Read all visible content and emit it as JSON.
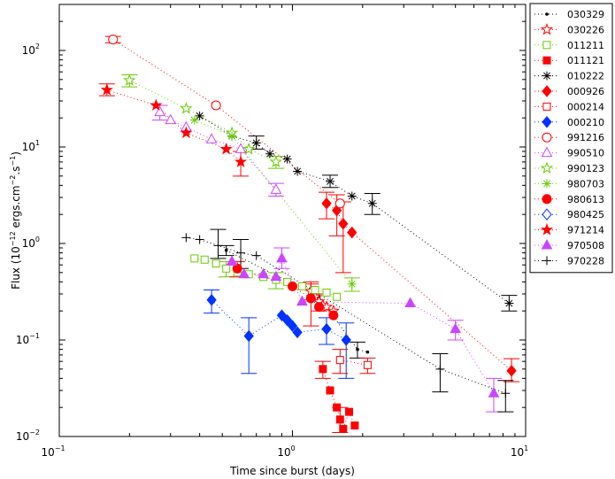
{
  "chart_data": {
    "type": "scatter",
    "title": "",
    "xlabel": "Time since burst (days)",
    "ylabel_prefix": "Flux (10",
    "ylabel_exp1": "−12",
    "ylabel_mid": " ergs.cm",
    "ylabel_exp2": "−2",
    "ylabel_mid2": ".s",
    "ylabel_exp3": "−1",
    "ylabel_suffix": ")",
    "xscale": "log",
    "yscale": "log",
    "xlim": [
      0.1,
      10
    ],
    "ylim": [
      0.01,
      300
    ],
    "x_ticks": [
      {
        "value": 0.1,
        "base": "10",
        "exp": "−1"
      },
      {
        "value": 1,
        "base": "10",
        "exp": "0"
      },
      {
        "value": 10,
        "base": "10",
        "exp": "1"
      }
    ],
    "y_ticks": [
      {
        "value": 0.01,
        "base": "10",
        "exp": "−2"
      },
      {
        "value": 0.1,
        "base": "10",
        "exp": "−1"
      },
      {
        "value": 1,
        "base": "10",
        "exp": "0"
      },
      {
        "value": 10,
        "base": "10",
        "exp": "1"
      },
      {
        "value": 100,
        "base": "10",
        "exp": "2"
      }
    ],
    "legend_position": "outside-right",
    "series": [
      {
        "name": "030329",
        "color": "#000000",
        "marker": "dot",
        "points": [
          [
            0.52,
            0.85
          ],
          [
            1.3,
            0.28
          ],
          [
            1.9,
            0.08
          ],
          [
            2.1,
            0.075
          ]
        ],
        "errors": [
          [
            0.52,
            0.75,
            0.95
          ],
          [
            1.9,
            0.065,
            0.095
          ]
        ]
      },
      {
        "name": "030226",
        "color": "#ff0000",
        "marker": "star-open",
        "points": [
          [
            1.2,
            0.32
          ],
          [
            1.25,
            0.28
          ],
          [
            1.3,
            0.25
          ],
          [
            1.35,
            0.23
          ],
          [
            1.4,
            0.22
          ],
          [
            1.5,
            0.2
          ]
        ],
        "errors": [
          [
            1.2,
            0.26,
            0.38
          ],
          [
            1.3,
            0.2,
            0.3
          ]
        ]
      },
      {
        "name": "011211",
        "color": "#66cc00",
        "marker": "square-open",
        "points": [
          [
            0.38,
            0.7
          ],
          [
            0.42,
            0.68
          ],
          [
            0.47,
            0.62
          ],
          [
            0.52,
            0.55
          ],
          [
            0.58,
            0.5
          ],
          [
            0.65,
            0.48
          ],
          [
            0.75,
            0.45
          ],
          [
            0.85,
            0.42
          ],
          [
            0.95,
            0.4
          ],
          [
            1.1,
            0.36
          ],
          [
            1.25,
            0.33
          ],
          [
            1.4,
            0.31
          ],
          [
            1.55,
            0.28
          ]
        ],
        "errors": [
          [
            0.52,
            0.45,
            0.65
          ],
          [
            0.85,
            0.34,
            0.5
          ]
        ]
      },
      {
        "name": "011121",
        "color": "#ff0000",
        "marker": "square",
        "points": [
          [
            1.35,
            0.05
          ],
          [
            1.45,
            0.03
          ],
          [
            1.55,
            0.02
          ],
          [
            1.6,
            0.015
          ],
          [
            1.65,
            0.012
          ],
          [
            1.75,
            0.018
          ],
          [
            1.85,
            0.013
          ]
        ],
        "errors": [
          [
            1.35,
            0.04,
            0.06
          ],
          [
            1.6,
            0.011,
            0.02
          ]
        ]
      },
      {
        "name": "010222",
        "color": "#000000",
        "marker": "asterisk",
        "points": [
          [
            0.4,
            21
          ],
          [
            0.55,
            13
          ],
          [
            0.7,
            11
          ],
          [
            0.8,
            8.5
          ],
          [
            0.95,
            7.5
          ],
          [
            1.05,
            5.6
          ],
          [
            1.45,
            4.4
          ],
          [
            1.8,
            3.1
          ],
          [
            2.2,
            2.6
          ],
          [
            8.5,
            0.24
          ]
        ],
        "errors": [
          [
            0.7,
            9.5,
            13
          ],
          [
            1.45,
            3.8,
            5.1
          ],
          [
            2.2,
            2.0,
            3.3
          ],
          [
            8.5,
            0.2,
            0.29
          ]
        ]
      },
      {
        "name": "000926",
        "color": "#ff0000",
        "marker": "diamond",
        "points": [
          [
            1.4,
            2.6
          ],
          [
            1.55,
            2.2
          ],
          [
            1.65,
            1.6
          ],
          [
            1.8,
            1.3
          ],
          [
            8.7,
            0.048
          ]
        ],
        "errors": [
          [
            1.4,
            1.8,
            3.4
          ],
          [
            1.55,
            1.2,
            3.2
          ],
          [
            1.65,
            0.5,
            2.7
          ],
          [
            8.7,
            0.037,
            0.064
          ]
        ]
      },
      {
        "name": "000214",
        "color": "#ff0000",
        "marker": "square-open",
        "points": [
          [
            1.6,
            0.062
          ],
          [
            2.1,
            0.055
          ]
        ],
        "errors": [
          [
            1.6,
            0.045,
            0.08
          ],
          [
            2.1,
            0.045,
            0.065
          ]
        ]
      },
      {
        "name": "000210",
        "color": "#0033ff",
        "marker": "diamond",
        "points": [
          [
            0.45,
            0.26
          ],
          [
            0.65,
            0.11
          ],
          [
            0.9,
            0.18
          ],
          [
            0.95,
            0.16
          ],
          [
            1.0,
            0.14
          ],
          [
            1.05,
            0.12
          ],
          [
            1.4,
            0.13
          ],
          [
            1.7,
            0.1
          ]
        ],
        "errors": [
          [
            0.45,
            0.19,
            0.33
          ],
          [
            0.65,
            0.045,
            0.17
          ],
          [
            1.4,
            0.09,
            0.17
          ],
          [
            1.7,
            0.04,
            0.15
          ]
        ]
      },
      {
        "name": "991216",
        "color": "#ff0000",
        "marker": "circle-open",
        "points": [
          [
            0.17,
            130
          ],
          [
            0.47,
            27
          ],
          [
            1.6,
            2.6
          ]
        ],
        "errors": [
          [
            0.17,
            120,
            140
          ]
        ]
      },
      {
        "name": "990510",
        "color": "#cc44ff",
        "marker": "triangle-open",
        "points": [
          [
            0.27,
            23
          ],
          [
            0.3,
            19
          ],
          [
            0.35,
            16
          ],
          [
            0.45,
            12
          ],
          [
            0.6,
            9.5
          ],
          [
            0.85,
            3.6
          ]
        ],
        "errors": [
          [
            0.27,
            19,
            27
          ],
          [
            0.85,
            3.1,
            4.2
          ]
        ]
      },
      {
        "name": "990123",
        "color": "#66cc00",
        "marker": "star-open",
        "points": [
          [
            0.2,
            49
          ],
          [
            0.35,
            25
          ],
          [
            0.55,
            14
          ],
          [
            0.65,
            9.5
          ],
          [
            0.85,
            7.0
          ]
        ],
        "errors": [
          [
            0.2,
            42,
            56
          ],
          [
            0.85,
            6.0,
            8.0
          ]
        ]
      },
      {
        "name": "980703",
        "color": "#66cc00",
        "marker": "asterisk",
        "points": [
          [
            0.38,
            19
          ],
          [
            0.55,
            13
          ],
          [
            1.8,
            0.38
          ]
        ],
        "errors": [
          [
            1.8,
            0.32,
            0.44
          ]
        ]
      },
      {
        "name": "980613",
        "color": "#ff0000",
        "marker": "circle",
        "points": [
          [
            0.58,
            0.55
          ],
          [
            1.0,
            0.36
          ],
          [
            1.2,
            0.27
          ],
          [
            1.3,
            0.22
          ],
          [
            1.5,
            0.18
          ]
        ],
        "errors": [
          [
            0.58,
            0.45,
            0.65
          ],
          [
            1.2,
            0.14,
            0.4
          ]
        ]
      },
      {
        "name": "980425",
        "color": "#0033ff",
        "marker": "diamond-open",
        "points": [],
        "errors": []
      },
      {
        "name": "971214",
        "color": "#ff0000",
        "marker": "star",
        "points": [
          [
            0.16,
            39
          ],
          [
            0.26,
            27
          ],
          [
            0.35,
            14
          ],
          [
            0.52,
            9.5
          ],
          [
            0.6,
            7.0
          ]
        ],
        "errors": [
          [
            0.16,
            34,
            45
          ],
          [
            0.6,
            5.0,
            9.0
          ]
        ]
      },
      {
        "name": "970508",
        "color": "#cc44ff",
        "marker": "triangle",
        "points": [
          [
            0.55,
            0.65
          ],
          [
            0.62,
            0.48
          ],
          [
            0.75,
            0.48
          ],
          [
            0.85,
            0.45
          ],
          [
            0.9,
            0.7
          ],
          [
            1.1,
            0.25
          ],
          [
            3.2,
            0.24
          ],
          [
            5.0,
            0.13
          ],
          [
            7.3,
            0.028
          ]
        ],
        "errors": [
          [
            0.9,
            0.55,
            0.9
          ],
          [
            5.0,
            0.1,
            0.16
          ],
          [
            7.3,
            0.018,
            0.04
          ]
        ]
      },
      {
        "name": "970228",
        "color": "#000000",
        "marker": "plus",
        "points": [
          [
            0.35,
            1.15
          ],
          [
            0.4,
            1.1
          ],
          [
            0.48,
            0.95
          ],
          [
            0.6,
            0.8
          ],
          [
            0.7,
            0.75
          ],
          [
            4.3,
            0.05
          ],
          [
            8.2,
            0.028
          ]
        ],
        "errors": [
          [
            0.48,
            0.7,
            1.4
          ],
          [
            0.6,
            0.55,
            1.1
          ],
          [
            4.3,
            0.029,
            0.072
          ],
          [
            8.2,
            0.018,
            0.038
          ]
        ]
      }
    ]
  }
}
